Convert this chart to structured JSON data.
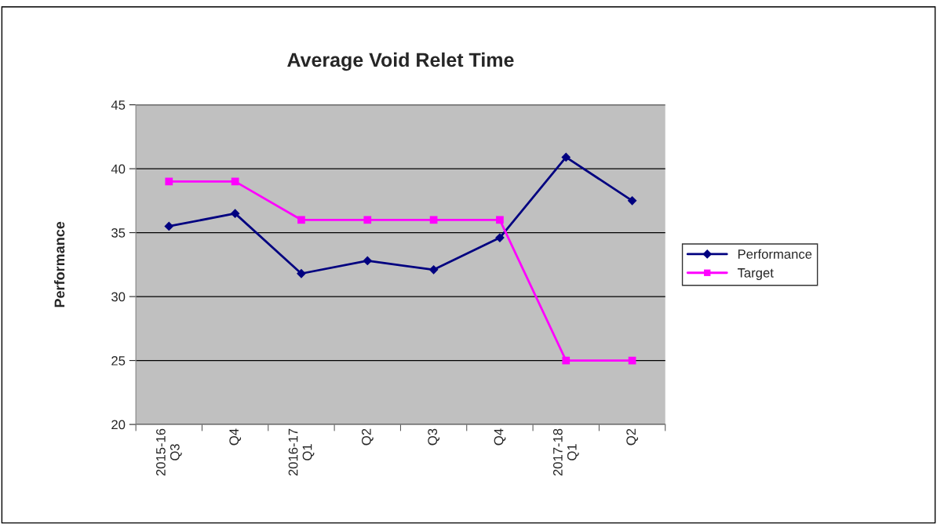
{
  "chart_data": {
    "type": "line",
    "title": "Average Void Relet Time",
    "ylabel": "Performance",
    "categories": [
      "2015-16\nQ3",
      "Q4",
      "2016-17\nQ1",
      "Q2",
      "Q3",
      "Q4",
      "2017-18\nQ1",
      "Q2"
    ],
    "series": [
      {
        "name": "Performance",
        "color": "#000080",
        "marker": "diamond",
        "values": [
          35.5,
          36.5,
          31.8,
          32.8,
          32.1,
          34.6,
          40.9,
          37.5
        ]
      },
      {
        "name": "Target",
        "color": "#ff00ff",
        "marker": "square",
        "values": [
          39,
          39,
          36,
          36,
          36,
          36,
          25,
          25
        ]
      }
    ],
    "ylim": [
      20,
      45
    ],
    "yticks": [
      20,
      25,
      30,
      35,
      40,
      45
    ],
    "grid": "y",
    "legend": "right"
  }
}
